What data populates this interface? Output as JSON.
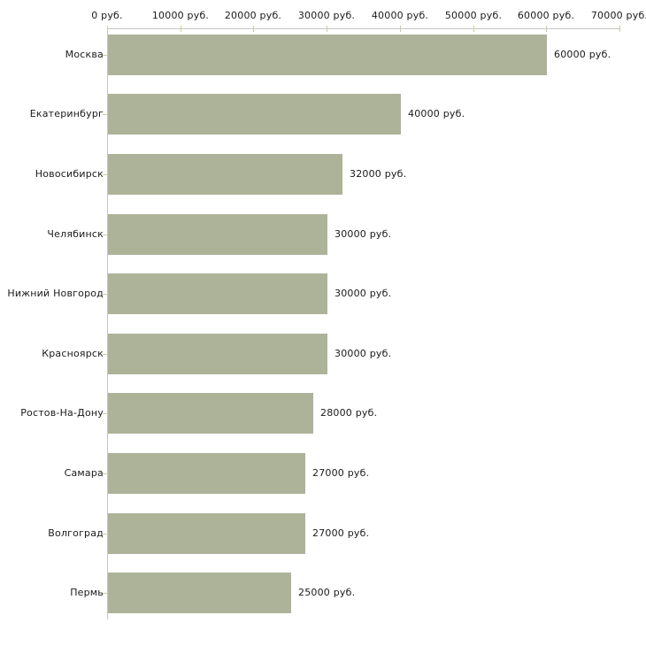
{
  "chart_data": {
    "type": "bar",
    "orientation": "horizontal",
    "title": "",
    "categories": [
      "Москва",
      "Екатеринбург",
      "Новосибирск",
      "Челябинск",
      "Нижний Новгород",
      "Красноярск",
      "Ростов-На-Дону",
      "Самара",
      "Волгоград",
      "Пермь"
    ],
    "values": [
      60000,
      40000,
      32000,
      30000,
      30000,
      30000,
      28000,
      27000,
      27000,
      25000
    ],
    "value_labels": [
      "60000 руб.",
      "40000 руб.",
      "32000 руб.",
      "30000 руб.",
      "30000 руб.",
      "30000 руб.",
      "28000 руб.",
      "27000 руб.",
      "27000 руб.",
      "25000 руб."
    ],
    "x_axis": {
      "position": "top",
      "tick_values": [
        0,
        10000,
        20000,
        30000,
        40000,
        50000,
        60000,
        70000
      ],
      "tick_labels": [
        "0 руб.",
        "10000 руб.",
        "20000 руб.",
        "30000 руб.",
        "40000 руб.",
        "50000 руб.",
        "60000 руб.",
        "70000 руб."
      ]
    },
    "xlim": [
      0,
      70000
    ],
    "unit": "руб.",
    "grid": false,
    "legend": null,
    "colors": {
      "bar": "#adb398",
      "axis_line": "#c6c6c6",
      "tick_mark": "#cdcd9f",
      "text": "#1a1a1a",
      "background": "#ffffff"
    }
  }
}
